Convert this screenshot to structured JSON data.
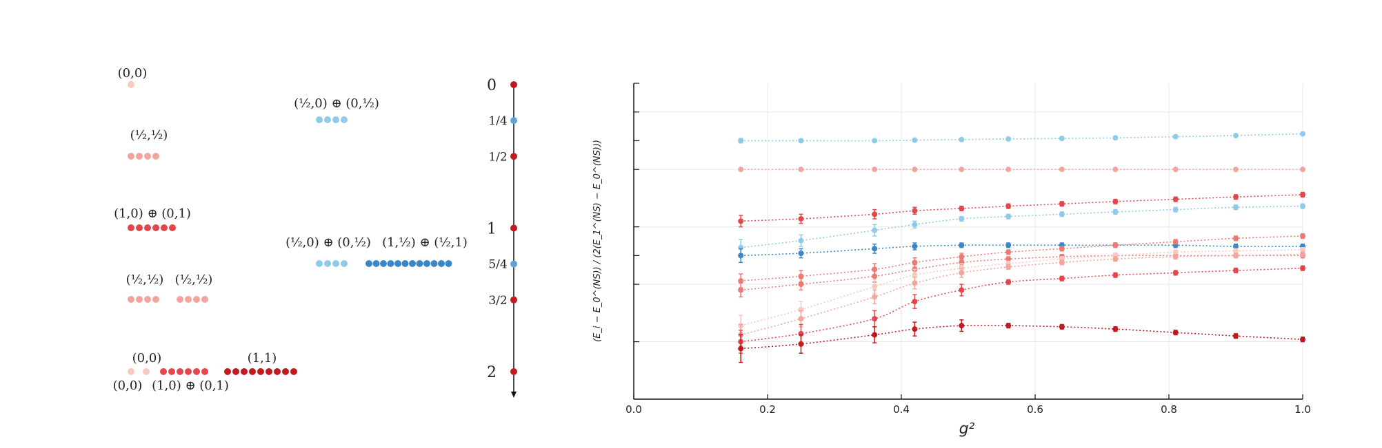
{
  "colors": {
    "red_dark": "#c0191e",
    "red": "#e4474b",
    "red_mid": "#ec7a74",
    "red_light": "#f4a59b",
    "red_pale": "#f7c9c0",
    "blue_light": "#8ecbea",
    "blue": "#3a87c8",
    "blue_mid": "#5ea2dc",
    "grid": "#e8e8e8",
    "axis": "#111111"
  },
  "diagram": {
    "labels": [
      {
        "id": "l00a",
        "text": "(0,0)"
      },
      {
        "id": "lhh1",
        "text": "(½,½)"
      },
      {
        "id": "l10",
        "text": "(1,0) ⊕ (0,1)"
      },
      {
        "id": "lhh2",
        "text": "(½,½)"
      },
      {
        "id": "lhh3",
        "text": "(½,½)"
      },
      {
        "id": "l00b",
        "text": "(0,0)"
      },
      {
        "id": "l00c",
        "text": "(0,0)"
      },
      {
        "id": "l10b",
        "text": "(1,0) ⊕ (0,1)"
      },
      {
        "id": "l11",
        "text": "(1,1)"
      },
      {
        "id": "lf1",
        "text": "(½,0) ⊕ (0,½)"
      },
      {
        "id": "lf2",
        "text": "(½,0) ⊕ (0,½)"
      },
      {
        "id": "lf3",
        "text": "(1,½) ⊕ (½,1)"
      }
    ],
    "scale": [
      {
        "label": "0",
        "value": 0,
        "color": "#c0191e"
      },
      {
        "label": "1/4",
        "value": 0.25,
        "color": "#5ea2dc"
      },
      {
        "label": "1/2",
        "value": 0.5,
        "color": "#c0191e"
      },
      {
        "label": "1",
        "value": 1,
        "color": "#c0191e"
      },
      {
        "label": "5/4",
        "value": 1.25,
        "color": "#5ea2dc"
      },
      {
        "label": "3/2",
        "value": 1.5,
        "color": "#c0191e"
      },
      {
        "label": "2",
        "value": 2,
        "color": "#c0191e"
      }
    ]
  },
  "chart_data": {
    "type": "line",
    "title": "",
    "xlabel": "g²",
    "ylabel": "(E_i − E_0^(NS)) / (2(E_1^(NS) − E_0^(NS)))",
    "xlim": [
      0.0,
      1.0
    ],
    "ylim": [
      2.5,
      -0.25
    ],
    "x_ticks": [
      0.0,
      0.2,
      0.4,
      0.6,
      0.8,
      1.0
    ],
    "x_tick_labels": [
      "0.0",
      "0.2",
      "0.4",
      "0.6",
      "0.8",
      "1.0"
    ],
    "grid": true,
    "x": [
      0.16,
      0.25,
      0.36,
      0.42,
      0.49,
      0.56,
      0.64,
      0.72,
      0.81,
      0.9,
      1.0
    ],
    "series": [
      {
        "color": "#8ecbea",
        "values": [
          0.25,
          0.25,
          0.25,
          0.245,
          0.24,
          0.235,
          0.23,
          0.225,
          0.215,
          0.205,
          0.19
        ],
        "errors": [
          0.02,
          0.01,
          0.01,
          0.01,
          0.01,
          0.01,
          0.01,
          0.01,
          0.01,
          0.01,
          0.01
        ]
      },
      {
        "color": "#f4a59b",
        "values": [
          0.5,
          0.5,
          0.5,
          0.5,
          0.5,
          0.5,
          0.5,
          0.5,
          0.5,
          0.5,
          0.5
        ],
        "errors": [
          0.01,
          0.01,
          0.01,
          0.01,
          0.01,
          0.01,
          0.01,
          0.01,
          0.01,
          0.01,
          0.01
        ]
      },
      {
        "color": "#e4474b",
        "values": [
          0.95,
          0.93,
          0.89,
          0.86,
          0.84,
          0.82,
          0.8,
          0.78,
          0.76,
          0.74,
          0.72
        ],
        "errors": [
          0.05,
          0.04,
          0.04,
          0.03,
          0.02,
          0.02,
          0.02,
          0.02,
          0.02,
          0.02,
          0.02
        ]
      },
      {
        "color": "#8ecbea",
        "values": [
          1.18,
          1.12,
          1.03,
          0.98,
          0.93,
          0.91,
          0.89,
          0.87,
          0.85,
          0.83,
          0.82
        ],
        "errors": [
          0.07,
          0.05,
          0.05,
          0.03,
          0.02,
          0.02,
          0.02,
          0.02,
          0.02,
          0.02,
          0.02
        ]
      },
      {
        "color": "#3a87c8",
        "values": [
          1.25,
          1.23,
          1.19,
          1.17,
          1.16,
          1.16,
          1.16,
          1.16,
          1.16,
          1.17,
          1.17
        ],
        "errors": [
          0.06,
          0.04,
          0.04,
          0.03,
          0.02,
          0.02,
          0.02,
          0.02,
          0.02,
          0.02,
          0.02
        ]
      },
      {
        "color": "#ec7a74",
        "values": [
          1.47,
          1.43,
          1.37,
          1.31,
          1.26,
          1.22,
          1.19,
          1.16,
          1.13,
          1.1,
          1.08
        ],
        "errors": [
          0.06,
          0.05,
          0.05,
          0.04,
          0.03,
          0.02,
          0.02,
          0.02,
          0.02,
          0.02,
          0.02
        ]
      },
      {
        "color": "#ec7a74",
        "values": [
          1.55,
          1.5,
          1.43,
          1.37,
          1.31,
          1.28,
          1.26,
          1.25,
          1.25,
          1.25,
          1.25
        ],
        "errors": [
          0.06,
          0.05,
          0.05,
          0.04,
          0.03,
          0.02,
          0.02,
          0.02,
          0.02,
          0.02,
          0.02
        ]
      },
      {
        "color": "#f7c9c0",
        "values": [
          1.86,
          1.72,
          1.52,
          1.42,
          1.36,
          1.32,
          1.28,
          1.25,
          1.22,
          1.21,
          1.2
        ],
        "errors": [
          0.09,
          0.07,
          0.06,
          0.05,
          0.04,
          0.02,
          0.02,
          0.02,
          0.02,
          0.02,
          0.02
        ]
      },
      {
        "color": "#f4a59b",
        "values": [
          1.94,
          1.8,
          1.61,
          1.49,
          1.4,
          1.35,
          1.31,
          1.28,
          1.26,
          1.25,
          1.24
        ],
        "errors": [
          0.09,
          0.07,
          0.06,
          0.05,
          0.04,
          0.02,
          0.02,
          0.02,
          0.02,
          0.02,
          0.02
        ]
      },
      {
        "color": "#e4474b",
        "values": [
          2.0,
          1.93,
          1.8,
          1.65,
          1.55,
          1.48,
          1.45,
          1.42,
          1.4,
          1.38,
          1.36
        ],
        "errors": [
          0.1,
          0.08,
          0.07,
          0.06,
          0.05,
          0.02,
          0.02,
          0.02,
          0.02,
          0.02,
          0.02
        ]
      },
      {
        "color": "#c0191e",
        "values": [
          2.06,
          2.02,
          1.94,
          1.89,
          1.86,
          1.86,
          1.87,
          1.89,
          1.92,
          1.95,
          1.98
        ],
        "errors": [
          0.12,
          0.08,
          0.07,
          0.06,
          0.05,
          0.02,
          0.02,
          0.02,
          0.02,
          0.02,
          0.02
        ]
      }
    ]
  }
}
